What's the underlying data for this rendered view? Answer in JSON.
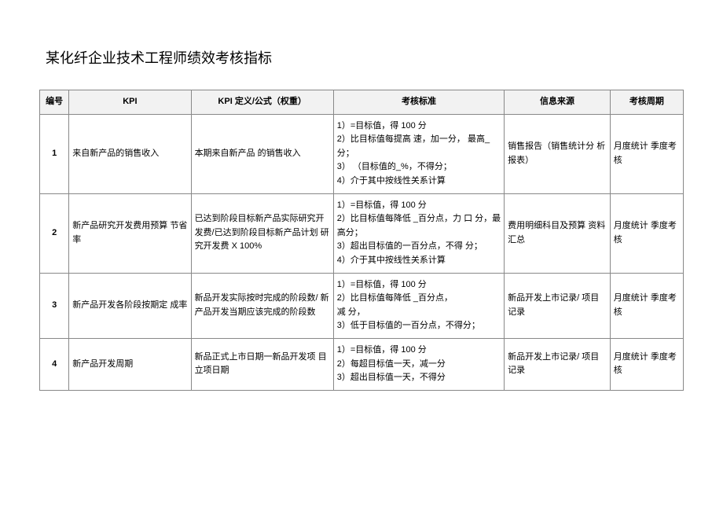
{
  "title": "某化纤企业技术工程师绩效考核指标",
  "headers": {
    "id": "编号",
    "kpi": "KPI",
    "def": "KPI 定义/公式（权重）",
    "std": "考核标准",
    "src": "信息来源",
    "cycle": "考核周期"
  },
  "rows": [
    {
      "id": "1",
      "kpi": "来自新产品的销售收入",
      "def": "本期来自新产品 的销售收入",
      "std": "1）=目标值，得 100 分\n2）比目标值每提高 速，加一分，  最高_ 分；\n3） （目标值的_%，不得分；\n4）介于其中按线性关系计算",
      "src": "销售报告（销售统计分 析报表）",
      "cycle": "月度统计 季度考核"
    },
    {
      "id": "2",
      "kpi": "新产品研究开发费用预算 节省率",
      "def": "已达到阶段目标新产品实际研究开 发费/已达到阶段目标新产品计划 研究开发费 X 100%",
      "std": "1）=目标值，得 100 分\n2）比目标值每降低 _百分点，力 口 分，最高分；\n3）超出目标值的一百分点，不得  分；\n4）介于其中按线性关系计算",
      "src": "费用明细科目及预算 资料汇总",
      "cycle": "月度统计 季度考核"
    },
    {
      "id": "3",
      "kpi": "新产品开发各阶段按期定  成率",
      "def": "新品开发实际按时完成的阶段数/ 新产品开发当期应该完成的阶段数",
      "std": "1）=目标值，得 100 分\n2）比目标值每降低  _百分点，\n减 分，\n3）低于目标值的一百分点，不得分；",
      "src": "新品开发上市记录/ 项目记录",
      "cycle": "月度统计 季度考核"
    },
    {
      "id": "4",
      "kpi": "新产品开发周期",
      "def": "新品正式上市日期一新品开发项 目立项日期",
      "std": "1）=目标值，得 100 分\n2）每超目标值一天，减一分\n3）超出目标值一天，不得分",
      "src": "新品开发上市记录/ 项目记录",
      "cycle": "月度统计 季度考核"
    }
  ]
}
